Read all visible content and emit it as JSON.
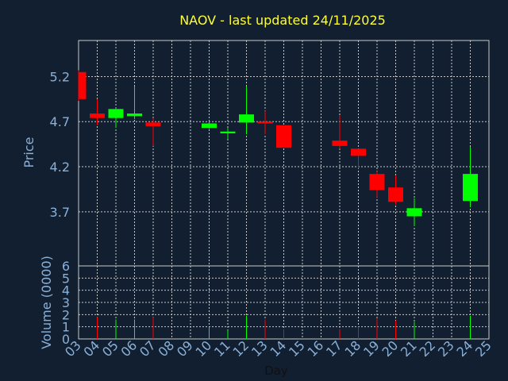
{
  "chart_data": [
    {
      "type": "candlestick",
      "title": "NAOV - last updated 24/11/2025",
      "ylabel": "Price",
      "ylim": [
        3.1,
        5.6
      ],
      "yticks": [
        "3.7",
        "4.2",
        "4.7",
        "5.2"
      ],
      "grid": true,
      "colors": {
        "up": "#00ff00",
        "down": "#ff0000",
        "title": "#ffff33",
        "axis_text": "#8ab0d8",
        "grid": "#c8c8c8",
        "background": "#111f30"
      },
      "candles": [
        {
          "day": "03",
          "open": 5.25,
          "high": 5.27,
          "low": 4.93,
          "close": 4.95
        },
        {
          "day": "04",
          "open": 4.79,
          "high": 4.95,
          "low": 4.66,
          "close": 4.74
        },
        {
          "day": "05",
          "open": 4.74,
          "high": 4.85,
          "low": 4.63,
          "close": 4.84
        },
        {
          "day": "06",
          "open": 4.76,
          "high": 5.09,
          "low": 4.73,
          "close": 4.79
        },
        {
          "day": "07",
          "open": 4.69,
          "high": 4.74,
          "low": 4.43,
          "close": 4.65
        },
        {
          "day": "10",
          "open": 4.63,
          "high": 4.71,
          "low": 4.62,
          "close": 4.68
        },
        {
          "day": "11",
          "open": 4.57,
          "high": 4.63,
          "low": 4.51,
          "close": 4.59
        },
        {
          "day": "12",
          "open": 4.69,
          "high": 5.09,
          "low": 4.56,
          "close": 4.78
        },
        {
          "day": "13",
          "open": 4.7,
          "high": 4.82,
          "low": 4.56,
          "close": 4.68
        },
        {
          "day": "14",
          "open": 4.66,
          "high": 4.66,
          "low": 4.41,
          "close": 4.41
        },
        {
          "day": "17",
          "open": 4.49,
          "high": 4.77,
          "low": 4.4,
          "close": 4.43
        },
        {
          "day": "18",
          "open": 4.4,
          "high": 4.4,
          "low": 4.18,
          "close": 4.32
        },
        {
          "day": "19",
          "open": 4.12,
          "high": 4.15,
          "low": 3.86,
          "close": 3.94
        },
        {
          "day": "20",
          "open": 3.97,
          "high": 4.1,
          "low": 3.78,
          "close": 3.81
        },
        {
          "day": "21",
          "open": 3.65,
          "high": 3.85,
          "low": 3.54,
          "close": 3.74
        },
        {
          "day": "24",
          "open": 3.82,
          "high": 4.42,
          "low": 3.75,
          "close": 4.12
        }
      ]
    },
    {
      "type": "bar",
      "ylabel": "Volume (0000)",
      "xlabel": "Day",
      "ylim": [
        0,
        6
      ],
      "yticks": [
        "0",
        "1",
        "2",
        "3",
        "4",
        "5",
        "6"
      ],
      "grid": true,
      "categories": [
        "03",
        "04",
        "05",
        "06",
        "07",
        "08",
        "09",
        "10",
        "11",
        "12",
        "13",
        "14",
        "15",
        "16",
        "17",
        "18",
        "19",
        "20",
        "21",
        "22",
        "23",
        "24",
        "25"
      ],
      "bars": [
        {
          "day": "04",
          "value": 1.8,
          "direction": "down"
        },
        {
          "day": "05",
          "value": 1.6,
          "direction": "up"
        },
        {
          "day": "06",
          "value": 1.6,
          "direction": "up"
        },
        {
          "day": "07",
          "value": 1.8,
          "direction": "down"
        },
        {
          "day": "10",
          "value": 1.0,
          "direction": "up"
        },
        {
          "day": "11",
          "value": 0.7,
          "direction": "up"
        },
        {
          "day": "12",
          "value": 1.9,
          "direction": "up"
        },
        {
          "day": "13",
          "value": 1.6,
          "direction": "down"
        },
        {
          "day": "14",
          "value": 0.8,
          "direction": "down"
        },
        {
          "day": "17",
          "value": 0.8,
          "direction": "down"
        },
        {
          "day": "18",
          "value": 1.0,
          "direction": "down"
        },
        {
          "day": "19",
          "value": 1.7,
          "direction": "down"
        },
        {
          "day": "20",
          "value": 1.5,
          "direction": "down"
        },
        {
          "day": "21",
          "value": 1.4,
          "direction": "up"
        },
        {
          "day": "24",
          "value": 1.9,
          "direction": "up"
        }
      ]
    }
  ]
}
